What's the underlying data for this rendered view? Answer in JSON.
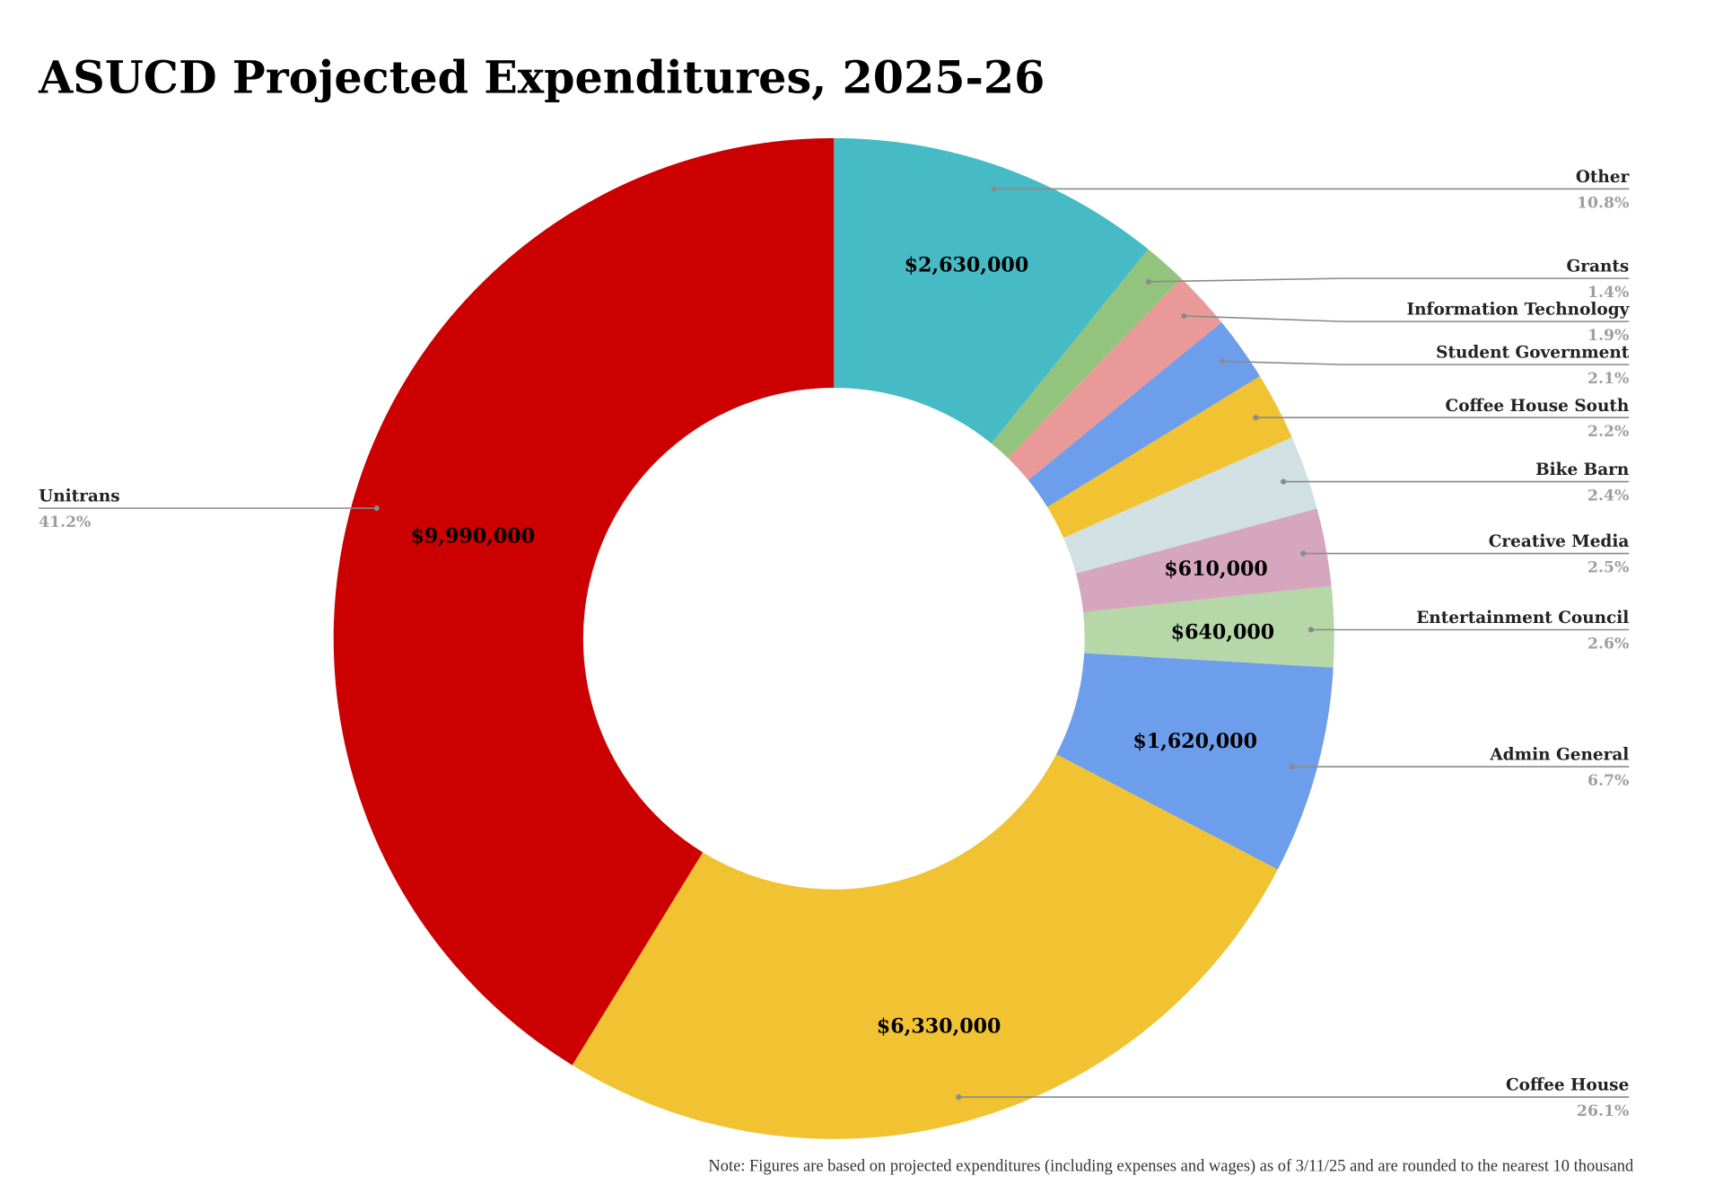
{
  "chart_data": {
    "type": "pie",
    "donut": true,
    "title": "ASUCD Projected Expenditures, 2025-26",
    "note": "Note: Figures are based on projected expenditures (including expenses and wages) as of 3/11/25 and are rounded to the nearest 10 thousand",
    "legend": "leader-line labels",
    "slices": [
      {
        "label": "Other",
        "percent": 10.8,
        "value_label": "$2,630,000",
        "color": "#46bbc5"
      },
      {
        "label": "Grants",
        "percent": 1.4,
        "value_label": "",
        "color": "#93c47d"
      },
      {
        "label": "Information Technology",
        "percent": 1.9,
        "value_label": "",
        "color": "#ea9999"
      },
      {
        "label": "Student Government",
        "percent": 2.1,
        "value_label": "",
        "color": "#6d9eeb"
      },
      {
        "label": "Coffee House South",
        "percent": 2.2,
        "value_label": "",
        "color": "#f1c232"
      },
      {
        "label": "Bike Barn",
        "percent": 2.4,
        "value_label": "",
        "color": "#d0e0e3"
      },
      {
        "label": "Creative Media",
        "percent": 2.5,
        "value_label": "$610,000",
        "color": "#d5a6bd"
      },
      {
        "label": "Entertainment Council",
        "percent": 2.6,
        "value_label": "$640,000",
        "color": "#b6d7a8"
      },
      {
        "label": "Admin General",
        "percent": 6.7,
        "value_label": "$1,620,000",
        "color": "#6d9eeb"
      },
      {
        "label": "Coffee House",
        "percent": 26.1,
        "value_label": "$6,330,000",
        "color": "#f1c232"
      },
      {
        "label": "Unitrans",
        "percent": 41.2,
        "value_label": "$9,990,000",
        "color": "#cc0000"
      }
    ],
    "percent_labels": [
      "10.8%",
      "1.4%",
      "1.9%",
      "2.1%",
      "2.2%",
      "2.4%",
      "2.5%",
      "2.6%",
      "6.7%",
      "26.1%",
      "41.2%"
    ]
  }
}
